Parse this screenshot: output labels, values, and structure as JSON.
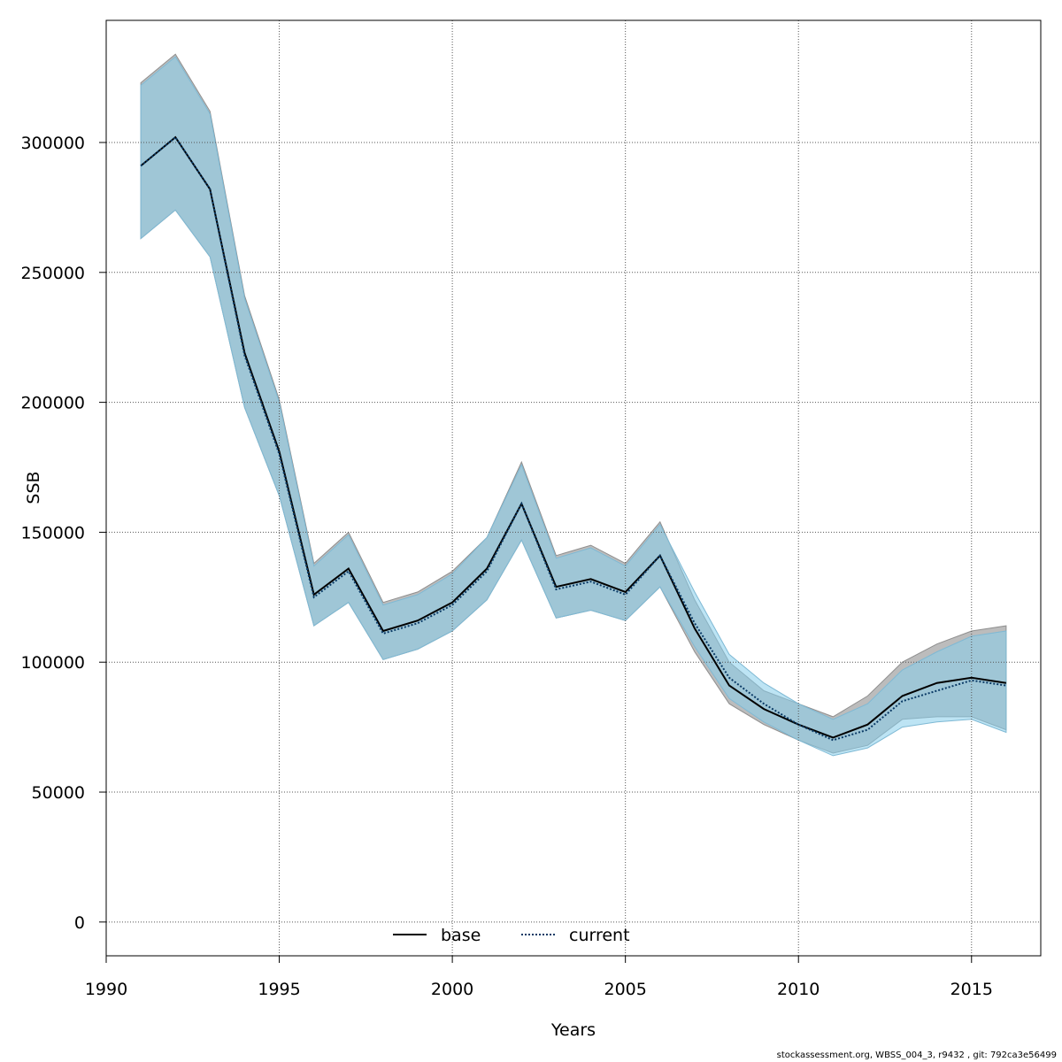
{
  "chart_data": {
    "type": "line",
    "title": "",
    "xlabel": "Years",
    "ylabel": "SSB",
    "xlim": [
      1990,
      2017
    ],
    "ylim": [
      -13000,
      347000
    ],
    "x_ticks": [
      1990,
      1995,
      2000,
      2005,
      2010,
      2015
    ],
    "y_ticks": [
      0,
      50000,
      100000,
      150000,
      200000,
      250000,
      300000
    ],
    "grid": true,
    "legend_position": "bottom-center",
    "x": [
      1991,
      1992,
      1993,
      1994,
      1995,
      1996,
      1997,
      1998,
      1999,
      2000,
      2001,
      2002,
      2003,
      2004,
      2005,
      2006,
      2007,
      2008,
      2009,
      2010,
      2011,
      2012,
      2013,
      2014,
      2015,
      2016
    ],
    "series": [
      {
        "name": "base",
        "line_style": "solid",
        "color": "#000000",
        "band_color": "#b0b0b0",
        "values": [
          291000,
          302000,
          282000,
          219000,
          181000,
          126000,
          136000,
          112000,
          116000,
          123000,
          136000,
          161000,
          129000,
          132000,
          127000,
          141000,
          113000,
          91000,
          82000,
          76000,
          71000,
          76000,
          87000,
          92000,
          94000,
          92000
        ],
        "lower": [
          263000,
          274000,
          256000,
          198000,
          164000,
          114000,
          123000,
          101000,
          105000,
          112000,
          124000,
          147000,
          117000,
          120000,
          116000,
          129000,
          104000,
          84000,
          76000,
          70000,
          65000,
          68000,
          78000,
          79000,
          79000,
          74000
        ],
        "upper": [
          323000,
          334000,
          312000,
          241000,
          201000,
          138000,
          150000,
          123000,
          127000,
          135000,
          148000,
          177000,
          141000,
          145000,
          138000,
          154000,
          124000,
          100000,
          89000,
          84000,
          79000,
          87000,
          100000,
          107000,
          112000,
          114000
        ]
      },
      {
        "name": "current",
        "line_style": "dotted",
        "color": "#0a3a66",
        "band_color": "#87ceeb",
        "values": [
          291000,
          302000,
          282000,
          218000,
          180000,
          125000,
          135000,
          111000,
          115000,
          122000,
          135000,
          161000,
          128000,
          131000,
          126000,
          141000,
          115000,
          94000,
          84000,
          76000,
          70000,
          74000,
          85000,
          89000,
          93000,
          91000
        ],
        "lower": [
          263000,
          274000,
          256000,
          198000,
          164000,
          114000,
          123000,
          101000,
          105000,
          112000,
          124000,
          147000,
          117000,
          120000,
          116000,
          129000,
          106000,
          86000,
          77000,
          70000,
          64000,
          67000,
          75000,
          77000,
          78000,
          73000
        ],
        "upper": [
          322000,
          333000,
          311000,
          240000,
          200000,
          137000,
          149000,
          122000,
          126000,
          134000,
          148000,
          176000,
          140000,
          144000,
          137000,
          153000,
          127000,
          103000,
          92000,
          84000,
          78000,
          84000,
          97000,
          104000,
          110000,
          112000
        ]
      }
    ]
  },
  "footer_text": "stockassessment.org, WBSS_004_3, r9432 , git: 792ca3e56499"
}
